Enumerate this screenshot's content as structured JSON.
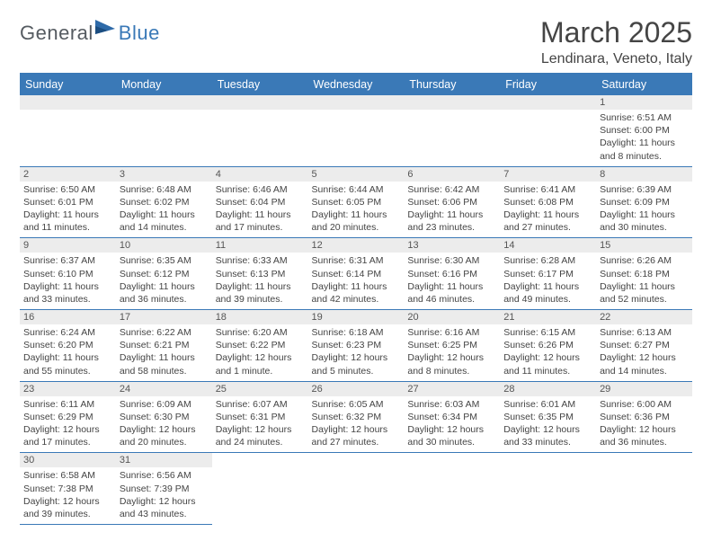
{
  "header": {
    "logo_part1": "General",
    "logo_part2": "Blue",
    "month_title": "March 2025",
    "location": "Lendinara, Veneto, Italy"
  },
  "colors": {
    "header_bg": "#3a79b7",
    "header_text": "#ffffff",
    "body_text": "#444444",
    "daynum_bg": "#ececec",
    "border": "#3a79b7",
    "logo_gray": "#555b61",
    "logo_blue": "#3a79b7"
  },
  "weekdays": [
    "Sunday",
    "Monday",
    "Tuesday",
    "Wednesday",
    "Thursday",
    "Friday",
    "Saturday"
  ],
  "weeks": [
    [
      null,
      null,
      null,
      null,
      null,
      null,
      {
        "n": "1",
        "sunrise": "Sunrise: 6:51 AM",
        "sunset": "Sunset: 6:00 PM",
        "daylight": "Daylight: 11 hours and 8 minutes."
      }
    ],
    [
      {
        "n": "2",
        "sunrise": "Sunrise: 6:50 AM",
        "sunset": "Sunset: 6:01 PM",
        "daylight": "Daylight: 11 hours and 11 minutes."
      },
      {
        "n": "3",
        "sunrise": "Sunrise: 6:48 AM",
        "sunset": "Sunset: 6:02 PM",
        "daylight": "Daylight: 11 hours and 14 minutes."
      },
      {
        "n": "4",
        "sunrise": "Sunrise: 6:46 AM",
        "sunset": "Sunset: 6:04 PM",
        "daylight": "Daylight: 11 hours and 17 minutes."
      },
      {
        "n": "5",
        "sunrise": "Sunrise: 6:44 AM",
        "sunset": "Sunset: 6:05 PM",
        "daylight": "Daylight: 11 hours and 20 minutes."
      },
      {
        "n": "6",
        "sunrise": "Sunrise: 6:42 AM",
        "sunset": "Sunset: 6:06 PM",
        "daylight": "Daylight: 11 hours and 23 minutes."
      },
      {
        "n": "7",
        "sunrise": "Sunrise: 6:41 AM",
        "sunset": "Sunset: 6:08 PM",
        "daylight": "Daylight: 11 hours and 27 minutes."
      },
      {
        "n": "8",
        "sunrise": "Sunrise: 6:39 AM",
        "sunset": "Sunset: 6:09 PM",
        "daylight": "Daylight: 11 hours and 30 minutes."
      }
    ],
    [
      {
        "n": "9",
        "sunrise": "Sunrise: 6:37 AM",
        "sunset": "Sunset: 6:10 PM",
        "daylight": "Daylight: 11 hours and 33 minutes."
      },
      {
        "n": "10",
        "sunrise": "Sunrise: 6:35 AM",
        "sunset": "Sunset: 6:12 PM",
        "daylight": "Daylight: 11 hours and 36 minutes."
      },
      {
        "n": "11",
        "sunrise": "Sunrise: 6:33 AM",
        "sunset": "Sunset: 6:13 PM",
        "daylight": "Daylight: 11 hours and 39 minutes."
      },
      {
        "n": "12",
        "sunrise": "Sunrise: 6:31 AM",
        "sunset": "Sunset: 6:14 PM",
        "daylight": "Daylight: 11 hours and 42 minutes."
      },
      {
        "n": "13",
        "sunrise": "Sunrise: 6:30 AM",
        "sunset": "Sunset: 6:16 PM",
        "daylight": "Daylight: 11 hours and 46 minutes."
      },
      {
        "n": "14",
        "sunrise": "Sunrise: 6:28 AM",
        "sunset": "Sunset: 6:17 PM",
        "daylight": "Daylight: 11 hours and 49 minutes."
      },
      {
        "n": "15",
        "sunrise": "Sunrise: 6:26 AM",
        "sunset": "Sunset: 6:18 PM",
        "daylight": "Daylight: 11 hours and 52 minutes."
      }
    ],
    [
      {
        "n": "16",
        "sunrise": "Sunrise: 6:24 AM",
        "sunset": "Sunset: 6:20 PM",
        "daylight": "Daylight: 11 hours and 55 minutes."
      },
      {
        "n": "17",
        "sunrise": "Sunrise: 6:22 AM",
        "sunset": "Sunset: 6:21 PM",
        "daylight": "Daylight: 11 hours and 58 minutes."
      },
      {
        "n": "18",
        "sunrise": "Sunrise: 6:20 AM",
        "sunset": "Sunset: 6:22 PM",
        "daylight": "Daylight: 12 hours and 1 minute."
      },
      {
        "n": "19",
        "sunrise": "Sunrise: 6:18 AM",
        "sunset": "Sunset: 6:23 PM",
        "daylight": "Daylight: 12 hours and 5 minutes."
      },
      {
        "n": "20",
        "sunrise": "Sunrise: 6:16 AM",
        "sunset": "Sunset: 6:25 PM",
        "daylight": "Daylight: 12 hours and 8 minutes."
      },
      {
        "n": "21",
        "sunrise": "Sunrise: 6:15 AM",
        "sunset": "Sunset: 6:26 PM",
        "daylight": "Daylight: 12 hours and 11 minutes."
      },
      {
        "n": "22",
        "sunrise": "Sunrise: 6:13 AM",
        "sunset": "Sunset: 6:27 PM",
        "daylight": "Daylight: 12 hours and 14 minutes."
      }
    ],
    [
      {
        "n": "23",
        "sunrise": "Sunrise: 6:11 AM",
        "sunset": "Sunset: 6:29 PM",
        "daylight": "Daylight: 12 hours and 17 minutes."
      },
      {
        "n": "24",
        "sunrise": "Sunrise: 6:09 AM",
        "sunset": "Sunset: 6:30 PM",
        "daylight": "Daylight: 12 hours and 20 minutes."
      },
      {
        "n": "25",
        "sunrise": "Sunrise: 6:07 AM",
        "sunset": "Sunset: 6:31 PM",
        "daylight": "Daylight: 12 hours and 24 minutes."
      },
      {
        "n": "26",
        "sunrise": "Sunrise: 6:05 AM",
        "sunset": "Sunset: 6:32 PM",
        "daylight": "Daylight: 12 hours and 27 minutes."
      },
      {
        "n": "27",
        "sunrise": "Sunrise: 6:03 AM",
        "sunset": "Sunset: 6:34 PM",
        "daylight": "Daylight: 12 hours and 30 minutes."
      },
      {
        "n": "28",
        "sunrise": "Sunrise: 6:01 AM",
        "sunset": "Sunset: 6:35 PM",
        "daylight": "Daylight: 12 hours and 33 minutes."
      },
      {
        "n": "29",
        "sunrise": "Sunrise: 6:00 AM",
        "sunset": "Sunset: 6:36 PM",
        "daylight": "Daylight: 12 hours and 36 minutes."
      }
    ],
    [
      {
        "n": "30",
        "sunrise": "Sunrise: 6:58 AM",
        "sunset": "Sunset: 7:38 PM",
        "daylight": "Daylight: 12 hours and 39 minutes."
      },
      {
        "n": "31",
        "sunrise": "Sunrise: 6:56 AM",
        "sunset": "Sunset: 7:39 PM",
        "daylight": "Daylight: 12 hours and 43 minutes."
      },
      null,
      null,
      null,
      null,
      null
    ]
  ]
}
